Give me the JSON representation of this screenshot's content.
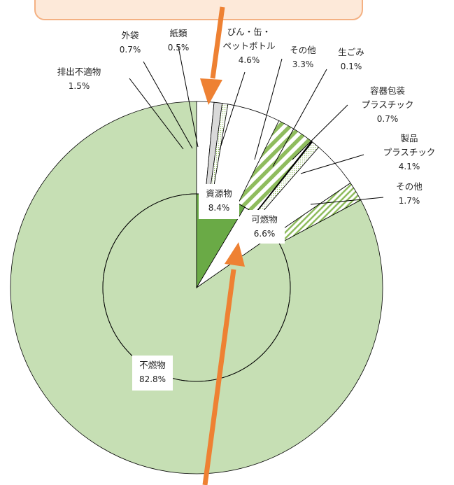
{
  "chart_data": {
    "type": "pie",
    "inner": {
      "slices": [
        {
          "name": "不燃物",
          "value": 82.8,
          "value_label": "82.8%",
          "color": "#c6dfb4"
        },
        {
          "name": "資源物",
          "value": 8.4,
          "value_label": "8.4%",
          "color": "#6aaa46"
        },
        {
          "name": "可燃物",
          "value": 6.6,
          "value_label": "6.6%",
          "color": "#ffffff"
        }
      ]
    },
    "outer": {
      "slices": [
        {
          "name": "不燃物",
          "value": 82.8,
          "value_label": "",
          "fill": "light-green"
        },
        {
          "name": "排出不適物",
          "value": 1.5,
          "value_label": "1.5%",
          "fill": "white"
        },
        {
          "name": "外袋",
          "value": 0.7,
          "value_label": "0.7%",
          "fill": "gray"
        },
        {
          "name": "紙類",
          "value": 0.5,
          "value_label": "0.5%",
          "fill": "dots"
        },
        {
          "name": "びん・缶・ペットボトル",
          "value": 4.6,
          "value_label": "4.6%",
          "fill": "white"
        },
        {
          "name": "その他",
          "value": 3.3,
          "value_label": "3.3%",
          "fill": "wide-stripes"
        },
        {
          "name": "生ごみ",
          "value": 0.1,
          "value_label": "0.1%",
          "fill": "black"
        },
        {
          "name": "容器包装プラスチック",
          "value": 0.7,
          "value_label": "0.7%",
          "fill": "dots"
        },
        {
          "name": "製品プラスチック",
          "value": 4.1,
          "value_label": "4.1%",
          "fill": "white"
        },
        {
          "name": "その他",
          "value": 1.7,
          "value_label": "1.7%",
          "fill": "thin-stripes"
        }
      ]
    },
    "labels": {
      "outer_lines": [
        {
          "key": "gaitai",
          "lines": [
            "外袋"
          ],
          "value": "0.7%"
        },
        {
          "key": "shirui",
          "lines": [
            "紙類"
          ],
          "value": "0.5%"
        },
        {
          "key": "bin",
          "lines": [
            "びん・缶・",
            "ペットボトル"
          ],
          "value": "4.6%"
        },
        {
          "key": "sonota1",
          "lines": [
            "その他"
          ],
          "value": "3.3%"
        },
        {
          "key": "namagomi",
          "lines": [
            "生ごみ"
          ],
          "value": "0.1%"
        },
        {
          "key": "haishutsu",
          "lines": [
            "排出不適物"
          ],
          "value": "1.5%"
        },
        {
          "key": "youki",
          "lines": [
            "容器包装",
            "プラスチック"
          ],
          "value": "0.7%"
        },
        {
          "key": "seihin",
          "lines": [
            "製品",
            "プラスチック"
          ],
          "value": "4.1%"
        },
        {
          "key": "sonota2",
          "lines": [
            "その他"
          ],
          "value": "1.7%"
        }
      ],
      "inner_boxes": [
        {
          "key": "shigen",
          "name": "資源物",
          "value": "8.4%"
        },
        {
          "key": "kanen",
          "name": "可燃物",
          "value": "6.6%"
        },
        {
          "key": "funen",
          "name": "不燃物",
          "value": "82.8%"
        }
      ]
    },
    "colors": {
      "accent_arrow": "#ee8133",
      "banner_fill": "#fde9d9",
      "banner_stroke": "#f4b183",
      "light_green": "#c6dfb4",
      "mid_green": "#6aaa46",
      "stripe_green": "#8fbc5e",
      "gray": "#d9d9d9",
      "line": "#000000"
    }
  }
}
